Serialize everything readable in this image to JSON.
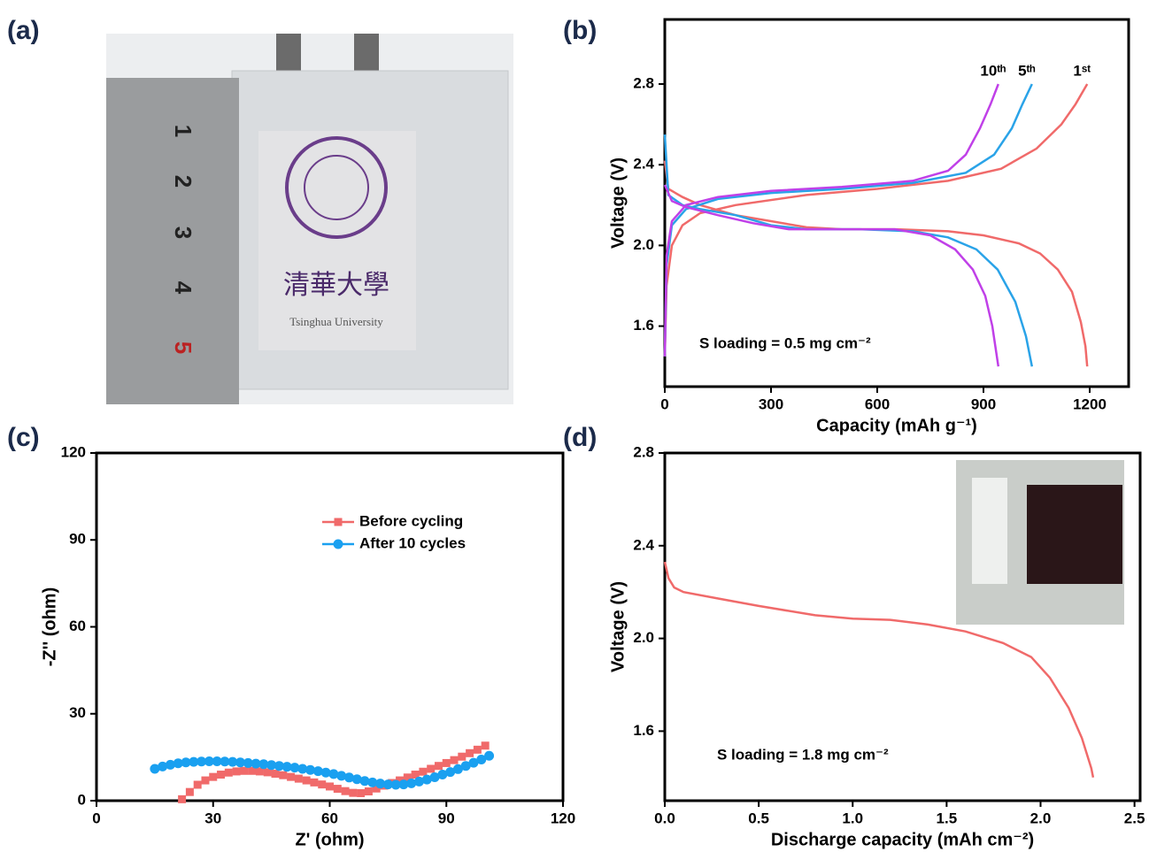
{
  "chart_data": [
    {
      "type": "image",
      "label": "(a)",
      "ruler_labels": [
        1,
        2,
        3,
        4,
        5
      ],
      "seal": "清華大學",
      "caption": "Tsinghua University"
    },
    {
      "type": "line",
      "label": "(b)",
      "xlabel": "Capacity (mAh g⁻¹)",
      "ylabel": "Voltage (V)",
      "annotation": "S loading = 0.5 mg cm⁻²",
      "xlim": [
        0,
        1310
      ],
      "ylim": [
        1.3,
        3.12
      ],
      "xticks": [
        0,
        300,
        600,
        900,
        1200
      ],
      "yticks": [
        1.6,
        {
          "value": 2,
          "label": "2.0"
        },
        2.4,
        2.8
      ],
      "series": [
        {
          "name": "1ˢᵗ",
          "color": "#f06a6a",
          "x": [
            0,
            10,
            50,
            100,
            200,
            300,
            400,
            500,
            650,
            800,
            900,
            1000,
            1060,
            1110,
            1150,
            1175,
            1188,
            1193,
            null,
            0,
            5,
            20,
            50,
            100,
            200,
            400,
            600,
            800,
            950,
            1050,
            1120,
            1160,
            1193
          ],
          "values": [
            2.42,
            2.28,
            2.24,
            2.2,
            2.15,
            2.12,
            2.09,
            2.08,
            2.08,
            2.07,
            2.05,
            2.01,
            1.96,
            1.88,
            1.77,
            1.62,
            1.5,
            1.4,
            null,
            1.45,
            1.8,
            2.0,
            2.1,
            2.16,
            2.2,
            2.25,
            2.28,
            2.32,
            2.38,
            2.48,
            2.6,
            2.7,
            2.8
          ]
        },
        {
          "name": "5ᵗʰ",
          "color": "#2aa3e8",
          "x": [
            0,
            10,
            50,
            100,
            200,
            300,
            400,
            550,
            700,
            800,
            880,
            940,
            990,
            1020,
            1037,
            null,
            0,
            5,
            20,
            60,
            150,
            300,
            500,
            700,
            850,
            930,
            980,
            1010,
            1037
          ],
          "values": [
            2.55,
            2.25,
            2.2,
            2.18,
            2.15,
            2.1,
            2.08,
            2.08,
            2.07,
            2.04,
            1.98,
            1.88,
            1.72,
            1.55,
            1.4,
            null,
            1.45,
            1.9,
            2.1,
            2.18,
            2.23,
            2.26,
            2.28,
            2.31,
            2.36,
            2.45,
            2.58,
            2.7,
            2.8
          ]
        },
        {
          "name": "10ᵗʰ",
          "color": "#c040e8",
          "x": [
            0,
            20,
            60,
            150,
            250,
            350,
            500,
            650,
            750,
            820,
            870,
            905,
            925,
            942,
            null,
            0,
            5,
            20,
            60,
            150,
            300,
            500,
            700,
            800,
            850,
            890,
            920,
            942
          ],
          "values": [
            2.3,
            2.22,
            2.19,
            2.15,
            2.11,
            2.08,
            2.08,
            2.08,
            2.05,
            1.98,
            1.88,
            1.75,
            1.6,
            1.4,
            null,
            1.45,
            1.95,
            2.12,
            2.2,
            2.24,
            2.27,
            2.29,
            2.32,
            2.37,
            2.45,
            2.58,
            2.7,
            2.8
          ]
        }
      ]
    },
    {
      "type": "scatter",
      "label": "(c)",
      "xlabel": "Z' (ohm)",
      "ylabel": "-Z'' (ohm)",
      "xlim": [
        0,
        120
      ],
      "ylim": [
        0,
        120
      ],
      "xticks": [
        0,
        30,
        60,
        90,
        120
      ],
      "yticks": [
        0,
        30,
        60,
        90,
        120
      ],
      "legend": "upper right",
      "series": [
        {
          "name": "Before cycling",
          "color": "#f06a6a",
          "marker": "square",
          "x": [
            22,
            24,
            26,
            28,
            30,
            32,
            34,
            36,
            38,
            40,
            42,
            44,
            46,
            48,
            50,
            52,
            54,
            56,
            58,
            60,
            62,
            64,
            66,
            68,
            70,
            72,
            74,
            76,
            78,
            80,
            82,
            84,
            86,
            88,
            90,
            92,
            94,
            96,
            98,
            100
          ],
          "values": [
            0.5,
            3,
            5.5,
            7,
            8.2,
            9,
            9.7,
            10.1,
            10.3,
            10.3,
            10.1,
            9.8,
            9.3,
            8.8,
            8.2,
            7.6,
            7,
            6.3,
            5.6,
            4.9,
            4.1,
            3.3,
            2.7,
            2.6,
            3.2,
            4.2,
            5.2,
            6.1,
            7,
            8,
            9,
            10,
            11,
            12,
            13,
            14,
            15.2,
            16.4,
            17.6,
            19
          ]
        },
        {
          "name": "After 10 cycles",
          "color": "#1aa0f0",
          "marker": "circle",
          "x": [
            15,
            17,
            19,
            21,
            23,
            25,
            27,
            29,
            31,
            33,
            35,
            37,
            39,
            41,
            43,
            45,
            47,
            49,
            51,
            53,
            55,
            57,
            59,
            61,
            63,
            65,
            67,
            69,
            71,
            73,
            75,
            77,
            79,
            81,
            83,
            85,
            87,
            89,
            91,
            93,
            95,
            97,
            99,
            101
          ],
          "values": [
            11,
            11.8,
            12.4,
            12.9,
            13.2,
            13.4,
            13.5,
            13.6,
            13.6,
            13.5,
            13.4,
            13.2,
            13,
            12.8,
            12.6,
            12.3,
            12,
            11.7,
            11.4,
            11,
            10.6,
            10.2,
            9.7,
            9.2,
            8.6,
            8,
            7.4,
            6.8,
            6.3,
            5.9,
            5.6,
            5.5,
            5.6,
            6,
            6.6,
            7.3,
            8.1,
            9,
            9.9,
            10.9,
            12,
            13.1,
            14.2,
            15.5
          ]
        }
      ]
    },
    {
      "type": "line",
      "label": "(d)",
      "xlabel": "Discharge capacity (mAh cm⁻²)",
      "ylabel": "Voltage (V)",
      "annotation": "S loading = 1.8 mg cm⁻²",
      "xlim": [
        0,
        2.53
      ],
      "ylim": [
        1.3,
        2.8
      ],
      "xticks": [
        {
          "value": 0,
          "label": "0.0"
        },
        0.5,
        {
          "value": 1,
          "label": "1.0"
        },
        1.5,
        {
          "value": 2,
          "label": "2.0"
        },
        2.5
      ],
      "yticks": [
        1.6,
        {
          "value": 2,
          "label": "2.0"
        },
        2.4,
        2.8
      ],
      "color": "#f06a6a",
      "x": [
        0,
        0.02,
        0.05,
        0.1,
        0.3,
        0.5,
        0.8,
        1.0,
        1.2,
        1.4,
        1.6,
        1.8,
        1.95,
        2.05,
        2.15,
        2.22,
        2.27,
        2.28
      ],
      "values": [
        2.33,
        2.26,
        2.22,
        2.2,
        2.17,
        2.14,
        2.1,
        2.085,
        2.08,
        2.06,
        2.03,
        1.98,
        1.92,
        1.83,
        1.7,
        1.57,
        1.44,
        1.4
      ]
    }
  ]
}
